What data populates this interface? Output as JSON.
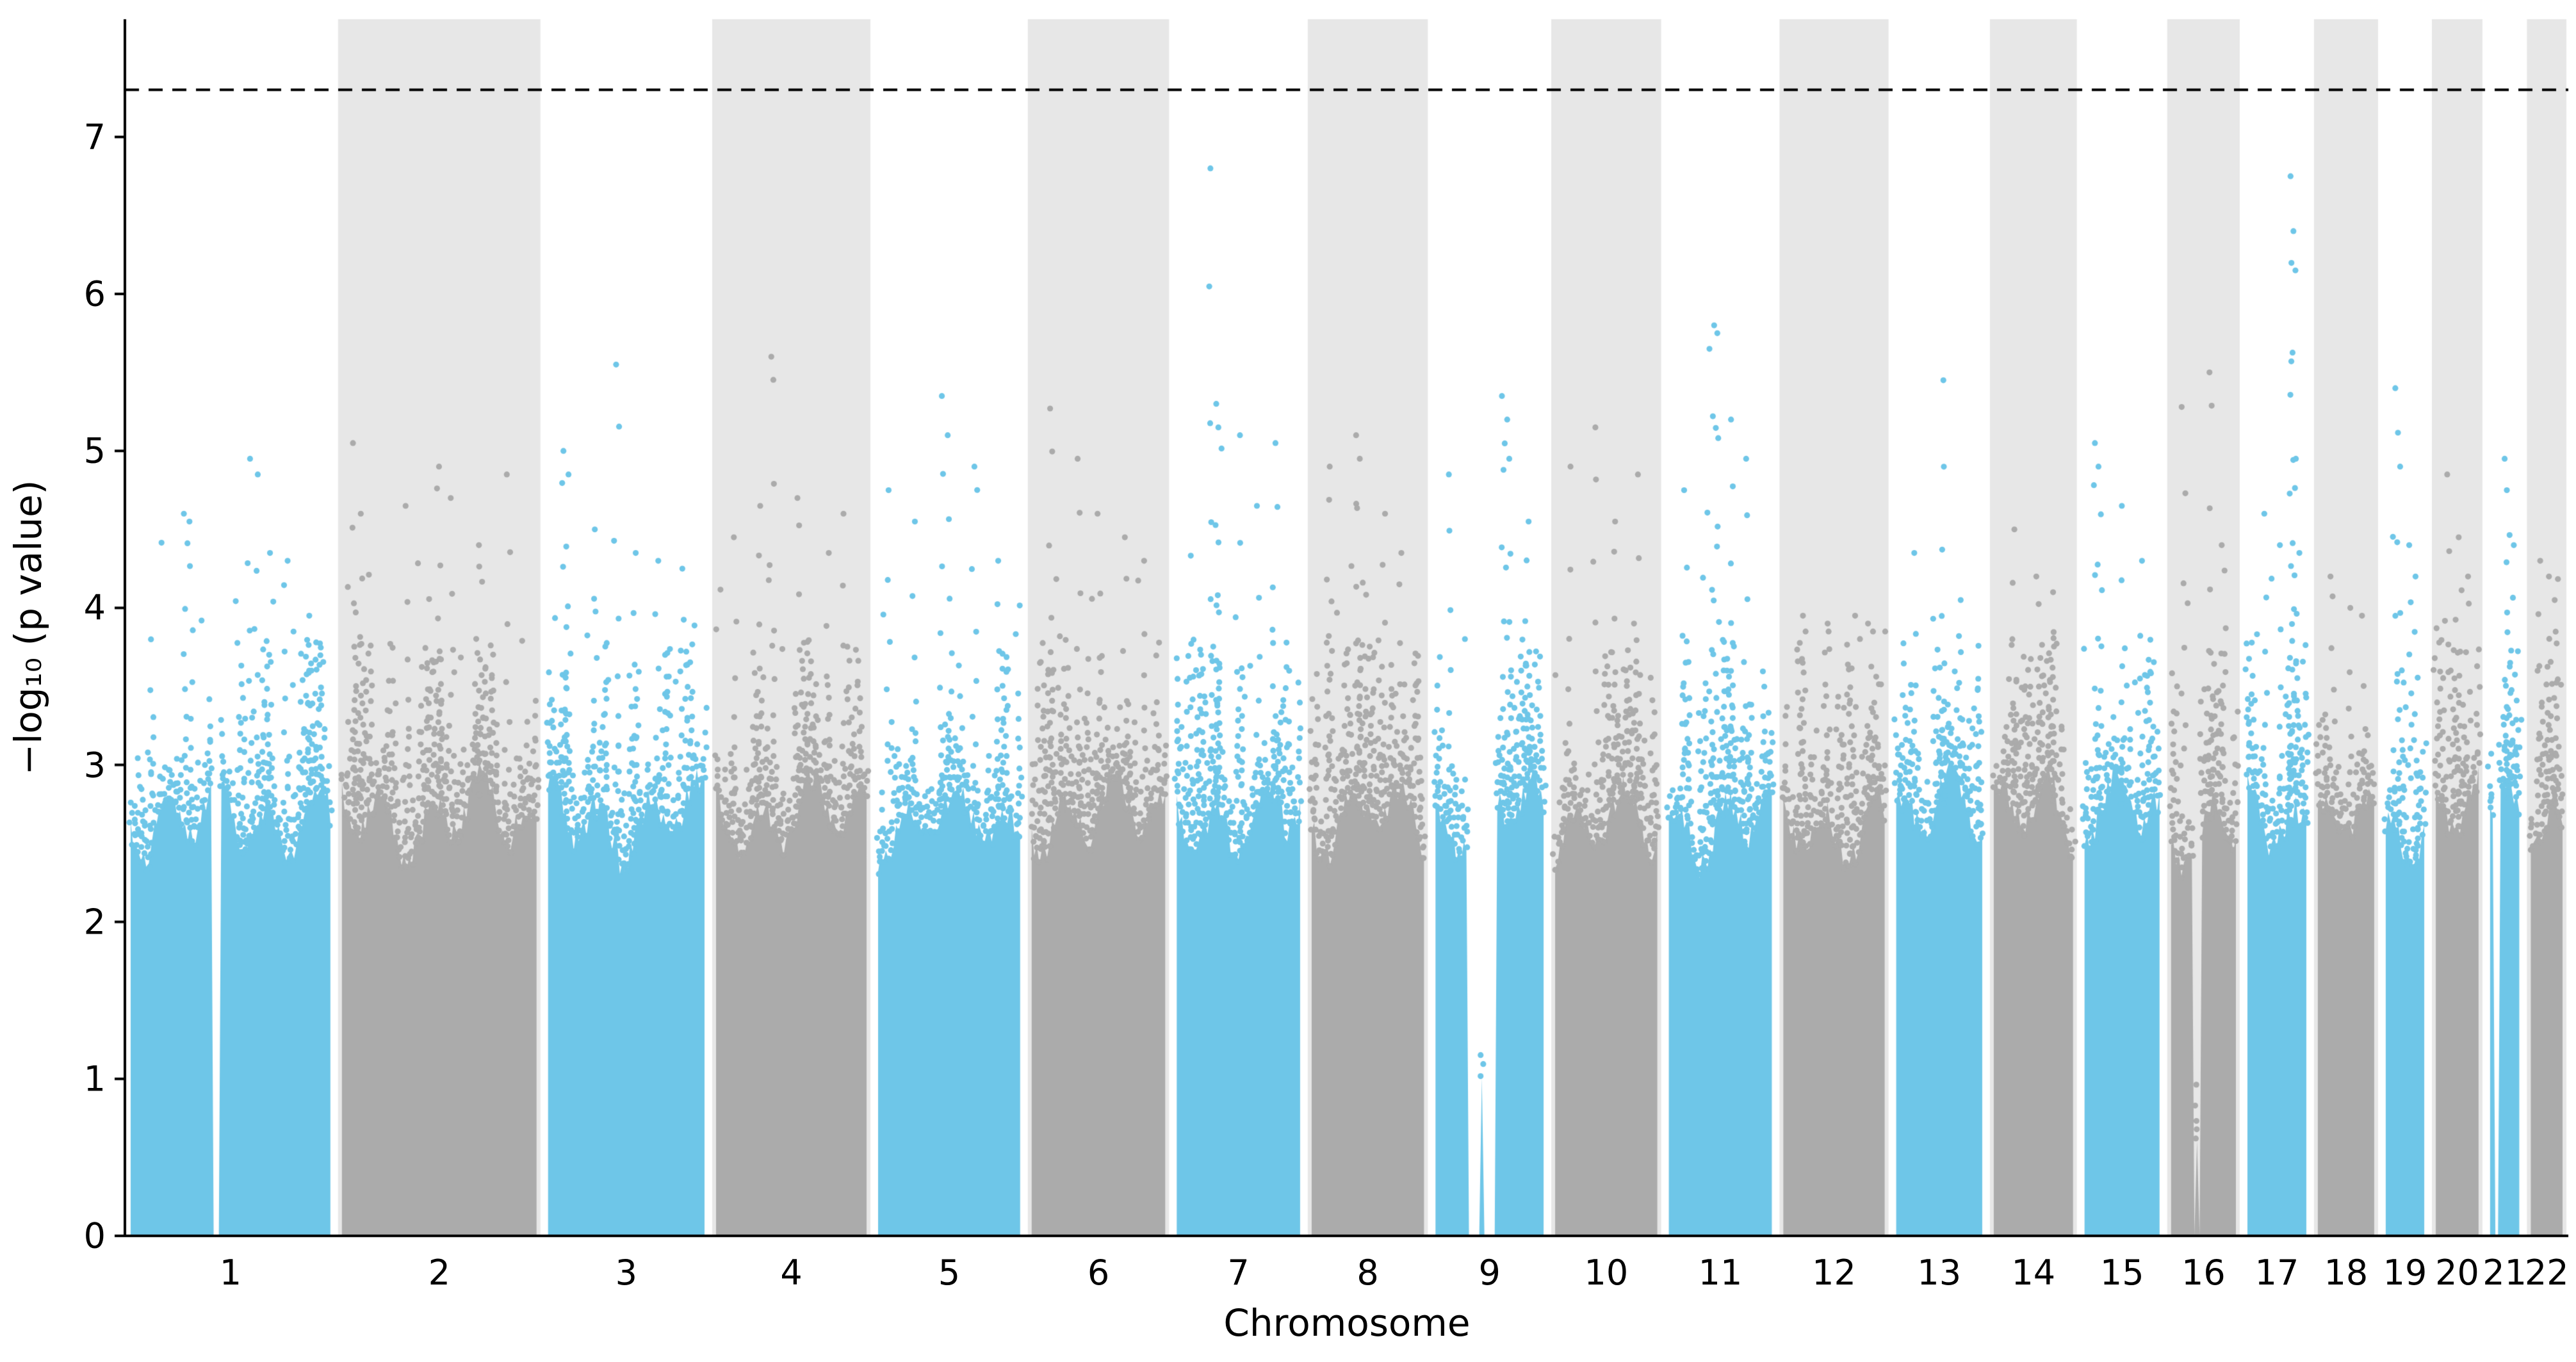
{
  "chart_data": {
    "type": "scatter",
    "subtype": "manhattan",
    "title": "",
    "xlabel": "Chromosome",
    "ylabel": "-log10 (p value)",
    "ylabel_display": "−log₁₀ (p value)",
    "ylim": [
      0,
      7.75
    ],
    "yticks": [
      0,
      1,
      2,
      3,
      4,
      5,
      6,
      7
    ],
    "grid": false,
    "legend": null,
    "significance_line": {
      "y": 7.3,
      "style": "dashed",
      "color": "#000000"
    },
    "dense_region_top": 2.65,
    "scatter_fade_top": 3.8,
    "colors": {
      "odd_chromosome_points": "#6ec6e8",
      "even_chromosome_points": "#ababab",
      "background_band": "#e7e7e7",
      "axis": "#000000",
      "background": "#ffffff"
    },
    "background_bands_on": "even-numbered chromosomes",
    "chromosomes": [
      {
        "label": "1",
        "length_mb": 249,
        "gaps": [
          [
            0.41,
            0.445
          ]
        ],
        "peaks": [
          [
            0.1,
            3.8
          ],
          [
            0.27,
            4.6
          ],
          [
            0.3,
            4.55
          ],
          [
            0.6,
            4.95
          ],
          [
            0.63,
            4.85
          ],
          [
            0.7,
            4.35
          ],
          [
            0.78,
            4.3
          ],
          [
            0.9,
            3.95
          ]
        ]
      },
      {
        "label": "2",
        "length_mb": 243,
        "gaps": [],
        "peaks": [
          [
            0.06,
            5.05
          ],
          [
            0.1,
            4.6
          ],
          [
            0.33,
            4.65
          ],
          [
            0.5,
            4.9
          ],
          [
            0.56,
            4.7
          ],
          [
            0.7,
            4.4
          ],
          [
            0.85,
            4.85
          ]
        ]
      },
      {
        "label": "3",
        "length_mb": 198,
        "gaps": [],
        "peaks": [
          [
            0.1,
            5.0
          ],
          [
            0.13,
            4.85
          ],
          [
            0.3,
            4.5
          ],
          [
            0.44,
            5.55
          ],
          [
            0.55,
            4.35
          ],
          [
            0.7,
            4.3
          ],
          [
            0.85,
            4.25
          ]
        ]
      },
      {
        "label": "4",
        "length_mb": 191,
        "gaps": [],
        "peaks": [
          [
            0.12,
            4.45
          ],
          [
            0.3,
            4.65
          ],
          [
            0.37,
            5.6
          ],
          [
            0.55,
            4.7
          ],
          [
            0.75,
            4.35
          ],
          [
            0.85,
            4.6
          ]
        ]
      },
      {
        "label": "5",
        "length_mb": 181,
        "gaps": [],
        "peaks": [
          [
            0.08,
            4.75
          ],
          [
            0.25,
            4.55
          ],
          [
            0.45,
            5.35
          ],
          [
            0.5,
            5.1
          ],
          [
            0.68,
            4.9
          ],
          [
            0.85,
            4.3
          ]
        ]
      },
      {
        "label": "6",
        "length_mb": 171,
        "gaps": [],
        "peaks": [
          [
            0.15,
            5.27
          ],
          [
            0.35,
            4.95
          ],
          [
            0.5,
            4.6
          ],
          [
            0.7,
            4.45
          ],
          [
            0.85,
            4.3
          ]
        ]
      },
      {
        "label": "7",
        "length_mb": 159,
        "gaps": [],
        "peaks": [
          [
            0.28,
            6.8
          ],
          [
            0.31,
            5.3
          ],
          [
            0.34,
            5.15
          ],
          [
            0.5,
            5.1
          ],
          [
            0.65,
            4.65
          ],
          [
            0.8,
            5.05
          ]
        ]
      },
      {
        "label": "8",
        "length_mb": 146,
        "gaps": [],
        "peaks": [
          [
            0.15,
            4.9
          ],
          [
            0.4,
            5.1
          ],
          [
            0.43,
            4.95
          ],
          [
            0.65,
            4.6
          ],
          [
            0.8,
            4.35
          ]
        ]
      },
      {
        "label": "9",
        "length_mb": 141,
        "gaps": [
          [
            0.3,
            0.55
          ]
        ],
        "peaks": [
          [
            0.12,
            4.85
          ],
          [
            0.62,
            5.35
          ],
          [
            0.65,
            5.2
          ],
          [
            0.68,
            4.95
          ],
          [
            0.85,
            4.55
          ]
        ]
      },
      {
        "label": "10",
        "length_mb": 134,
        "gaps": [],
        "peaks": [
          [
            0.15,
            4.9
          ],
          [
            0.4,
            5.15
          ],
          [
            0.6,
            4.55
          ],
          [
            0.8,
            4.85
          ]
        ]
      },
      {
        "label": "11",
        "length_mb": 135,
        "gaps": [],
        "peaks": [
          [
            0.15,
            4.75
          ],
          [
            0.4,
            5.65
          ],
          [
            0.45,
            5.8
          ],
          [
            0.48,
            5.75
          ],
          [
            0.6,
            5.2
          ],
          [
            0.75,
            4.95
          ]
        ]
      },
      {
        "label": "12",
        "length_mb": 133,
        "gaps": [],
        "peaks": [
          [
            0.2,
            3.95
          ],
          [
            0.45,
            3.9
          ],
          [
            0.7,
            3.95
          ],
          [
            0.85,
            3.9
          ]
        ]
      },
      {
        "label": "13",
        "length_mb": 115,
        "gaps": [],
        "peaks": [
          [
            0.2,
            4.35
          ],
          [
            0.55,
            5.45
          ],
          [
            0.75,
            4.05
          ]
        ]
      },
      {
        "label": "14",
        "length_mb": 107,
        "gaps": [],
        "peaks": [
          [
            0.25,
            4.5
          ],
          [
            0.55,
            4.2
          ],
          [
            0.75,
            4.1
          ]
        ]
      },
      {
        "label": "15",
        "length_mb": 102,
        "gaps": [],
        "peaks": [
          [
            0.15,
            5.05
          ],
          [
            0.2,
            4.9
          ],
          [
            0.5,
            4.65
          ],
          [
            0.75,
            4.3
          ]
        ]
      },
      {
        "label": "16",
        "length_mb": 90,
        "gaps": [
          [
            0.34,
            0.46
          ]
        ],
        "peaks": [
          [
            0.18,
            5.28
          ],
          [
            0.6,
            5.5
          ],
          [
            0.8,
            4.4
          ]
        ]
      },
      {
        "label": "17",
        "length_mb": 83,
        "gaps": [],
        "peaks": [
          [
            0.3,
            4.6
          ],
          [
            0.55,
            4.4
          ],
          [
            0.72,
            6.75
          ],
          [
            0.76,
            6.4
          ],
          [
            0.79,
            6.15
          ],
          [
            0.84,
            4.95
          ]
        ]
      },
      {
        "label": "18",
        "length_mb": 80,
        "gaps": [],
        "peaks": [
          [
            0.25,
            4.2
          ],
          [
            0.55,
            4.0
          ],
          [
            0.8,
            3.95
          ]
        ]
      },
      {
        "label": "19",
        "length_mb": 59,
        "gaps": [],
        "peaks": [
          [
            0.25,
            5.4
          ],
          [
            0.35,
            4.9
          ],
          [
            0.6,
            4.4
          ],
          [
            0.8,
            4.2
          ]
        ]
      },
      {
        "label": "20",
        "length_mb": 64,
        "gaps": [],
        "peaks": [
          [
            0.25,
            4.85
          ],
          [
            0.55,
            4.45
          ],
          [
            0.75,
            4.2
          ]
        ]
      },
      {
        "label": "21",
        "length_mb": 48,
        "gaps": [
          [
            0.15,
            0.32
          ]
        ],
        "peaks": [
          [
            0.55,
            4.95
          ],
          [
            0.62,
            4.75
          ],
          [
            0.8,
            4.4
          ]
        ]
      },
      {
        "label": "22",
        "length_mb": 51,
        "gaps": [],
        "peaks": [
          [
            0.3,
            4.3
          ],
          [
            0.55,
            4.2
          ],
          [
            0.8,
            4.05
          ]
        ]
      }
    ]
  }
}
